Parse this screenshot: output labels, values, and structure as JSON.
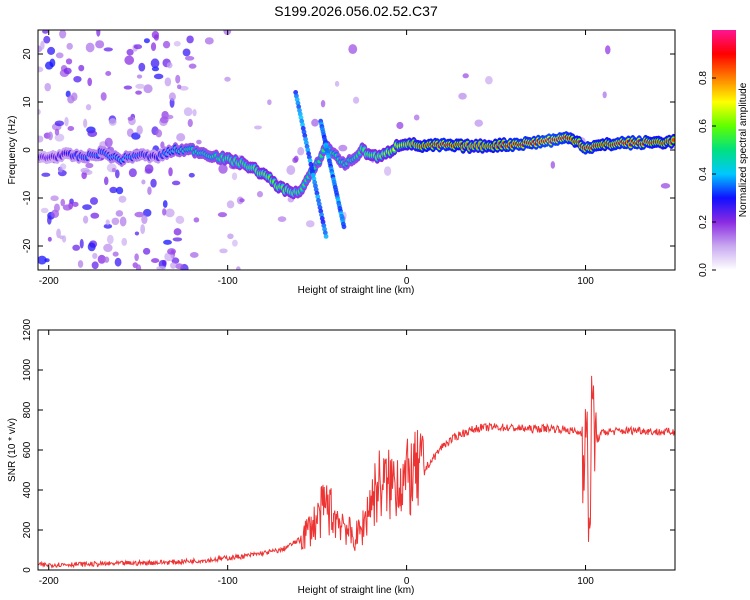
{
  "figure_title": "S199.2026.056.02.52.C37",
  "colors": {
    "snr_line": "#ee3333",
    "axis": "#000000",
    "background": "#ffffff"
  },
  "chart_data": [
    {
      "type": "heatmap",
      "title": "",
      "xlabel": "Height of straight line (km)",
      "ylabel": "Frequency (Hz)",
      "xlim": [
        -206,
        150
      ],
      "ylim": [
        -25,
        25
      ],
      "x_ticks": [
        -200,
        -100,
        0,
        100
      ],
      "x_tick_labels": [
        "-200",
        "-100",
        "0",
        "100"
      ],
      "y_ticks": [
        -20,
        -10,
        0,
        10,
        20
      ],
      "y_tick_labels": [
        "-20",
        "-10",
        "0",
        "10",
        "20"
      ],
      "colorbar": {
        "label": "Normalized spectral amplitude",
        "range": [
          0,
          1
        ],
        "ticks": [
          0.0,
          0.2,
          0.4,
          0.6,
          0.8
        ],
        "tick_labels": [
          "0.0",
          "0.2",
          "0.4",
          "0.6",
          "0.8"
        ],
        "colormap": [
          "#ffffff",
          "#c8a8f0",
          "#8a2be2",
          "#1010ff",
          "#00c8ff",
          "#00e080",
          "#60ff00",
          "#ffff00",
          "#ff8000",
          "#ff0000",
          "#ff1493"
        ]
      },
      "ridge": {
        "description_points_x": [
          -200,
          -190,
          -180,
          -170,
          -160,
          -150,
          -140,
          -130,
          -120,
          -110,
          -100,
          -90,
          -80,
          -70,
          -60,
          -50,
          -45,
          -40,
          -35,
          -30,
          -25,
          -20,
          -15,
          -10,
          -5,
          0,
          5,
          10,
          20,
          30,
          40,
          50,
          60,
          70,
          80,
          90,
          95,
          100,
          110,
          120,
          130,
          140,
          150
        ],
        "description_points_freq": [
          -1.5,
          -1,
          -1.5,
          -0.5,
          -2,
          -1,
          -1.5,
          0,
          0,
          -1,
          -2,
          -3,
          -5,
          -8,
          -9,
          -3,
          1,
          -1,
          -3,
          -2,
          0,
          -1,
          -1.5,
          -0.5,
          1,
          1.5,
          1,
          0.8,
          1,
          0.8,
          0.8,
          1,
          1.2,
          1.5,
          2,
          2.5,
          2,
          0.5,
          1,
          1.5,
          1.5,
          1.6,
          1.8
        ],
        "ridge_amplitude": [
          0.25,
          0.3,
          0.35,
          0.35,
          0.4,
          0.35,
          0.3,
          0.45,
          0.5,
          0.5,
          0.55,
          0.55,
          0.6,
          0.6,
          0.55,
          0.5,
          0.55,
          0.5,
          0.5,
          0.5,
          0.55,
          0.6,
          0.6,
          0.65,
          0.7,
          0.75,
          0.8,
          0.85,
          0.9,
          0.85,
          0.8,
          0.85,
          0.9,
          0.9,
          0.95,
          0.9,
          0.85,
          0.9,
          0.85,
          0.9,
          0.9,
          0.85,
          0.85
        ]
      }
    },
    {
      "type": "line",
      "title": "",
      "xlabel": "Height of straight line (km)",
      "ylabel": "SNR (10 * v/v)",
      "xlim": [
        -206,
        150
      ],
      "ylim": [
        0,
        1200
      ],
      "x_ticks": [
        -200,
        -100,
        0,
        100
      ],
      "x_tick_labels": [
        "-200",
        "-100",
        "0",
        "100"
      ],
      "y_ticks": [
        0,
        200,
        400,
        600,
        800,
        1000,
        1200
      ],
      "y_tick_labels": [
        "0",
        "200",
        "400",
        "600",
        "800",
        "1000",
        "1200"
      ],
      "series": [
        {
          "name": "SNR",
          "x": [
            -206,
            -190,
            -170,
            -150,
            -130,
            -110,
            -100,
            -90,
            -80,
            -70,
            -60,
            -50,
            -45,
            -40,
            -35,
            -30,
            -25,
            -20,
            -15,
            -10,
            -5,
            0,
            5,
            10,
            15,
            20,
            30,
            40,
            50,
            60,
            70,
            80,
            90,
            95,
            100,
            102,
            104,
            106,
            110,
            120,
            130,
            140,
            150
          ],
          "values": [
            25,
            28,
            30,
            35,
            40,
            50,
            60,
            70,
            85,
            100,
            150,
            250,
            330,
            260,
            240,
            150,
            200,
            350,
            430,
            420,
            460,
            450,
            480,
            500,
            560,
            620,
            680,
            710,
            715,
            710,
            705,
            710,
            700,
            690,
            680,
            300,
            800,
            650,
            690,
            695,
            700,
            690,
            690
          ]
        }
      ],
      "grid": false
    }
  ]
}
